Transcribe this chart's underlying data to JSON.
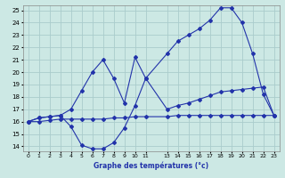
{
  "bg_color": "#cce8e4",
  "grid_color": "#aacccc",
  "line_color": "#2233aa",
  "xlabel": "Graphe des températures (°c)",
  "xlim": [
    -0.5,
    23.5
  ],
  "ylim": [
    13.6,
    25.4
  ],
  "xtick_pos": [
    0,
    1,
    2,
    3,
    4,
    5,
    6,
    7,
    8,
    9,
    10,
    11,
    13,
    14,
    15,
    16,
    17,
    18,
    19,
    20,
    21,
    22,
    23
  ],
  "xtick_labels": [
    "0",
    "1",
    "2",
    "3",
    "4",
    "5",
    "6",
    "7",
    "8",
    "9",
    "10",
    "11",
    "13",
    "14",
    "15",
    "16",
    "17",
    "18",
    "19",
    "20",
    "21",
    "22",
    "23"
  ],
  "ytick_pos": [
    14,
    15,
    16,
    17,
    18,
    19,
    20,
    21,
    22,
    23,
    24,
    25
  ],
  "line1_x": [
    0,
    1,
    2,
    3,
    4,
    5,
    6,
    7,
    8,
    9,
    10,
    11,
    13,
    14,
    15,
    16,
    17,
    18,
    19,
    20,
    21,
    22,
    23
  ],
  "line1_y": [
    16.0,
    16.0,
    16.1,
    16.2,
    16.2,
    16.2,
    16.2,
    16.2,
    16.3,
    16.3,
    16.4,
    16.4,
    16.4,
    16.5,
    16.5,
    16.5,
    16.5,
    16.5,
    16.5,
    16.5,
    16.5,
    16.5,
    16.5
  ],
  "line2_x": [
    0,
    1,
    2,
    3,
    4,
    5,
    6,
    7,
    8,
    9,
    10,
    11,
    13,
    14,
    15,
    16,
    17,
    18,
    19,
    20,
    21,
    22,
    23
  ],
  "line2_y": [
    16.0,
    16.3,
    16.4,
    16.5,
    15.6,
    14.1,
    13.8,
    13.8,
    14.3,
    15.5,
    17.3,
    19.5,
    17.0,
    17.3,
    17.5,
    17.8,
    18.1,
    18.4,
    18.5,
    18.6,
    18.7,
    18.8,
    16.5
  ],
  "line3_x": [
    0,
    1,
    2,
    3,
    4,
    5,
    6,
    7,
    8,
    9,
    10,
    11,
    13,
    14,
    15,
    16,
    17,
    18,
    19,
    20,
    21,
    22,
    23
  ],
  "line3_y": [
    16.0,
    16.3,
    16.4,
    16.5,
    17.0,
    18.5,
    20.0,
    21.0,
    19.5,
    17.5,
    21.2,
    19.5,
    21.5,
    22.5,
    23.0,
    23.5,
    24.2,
    25.2,
    25.2,
    24.0,
    21.5,
    18.2,
    16.5
  ]
}
